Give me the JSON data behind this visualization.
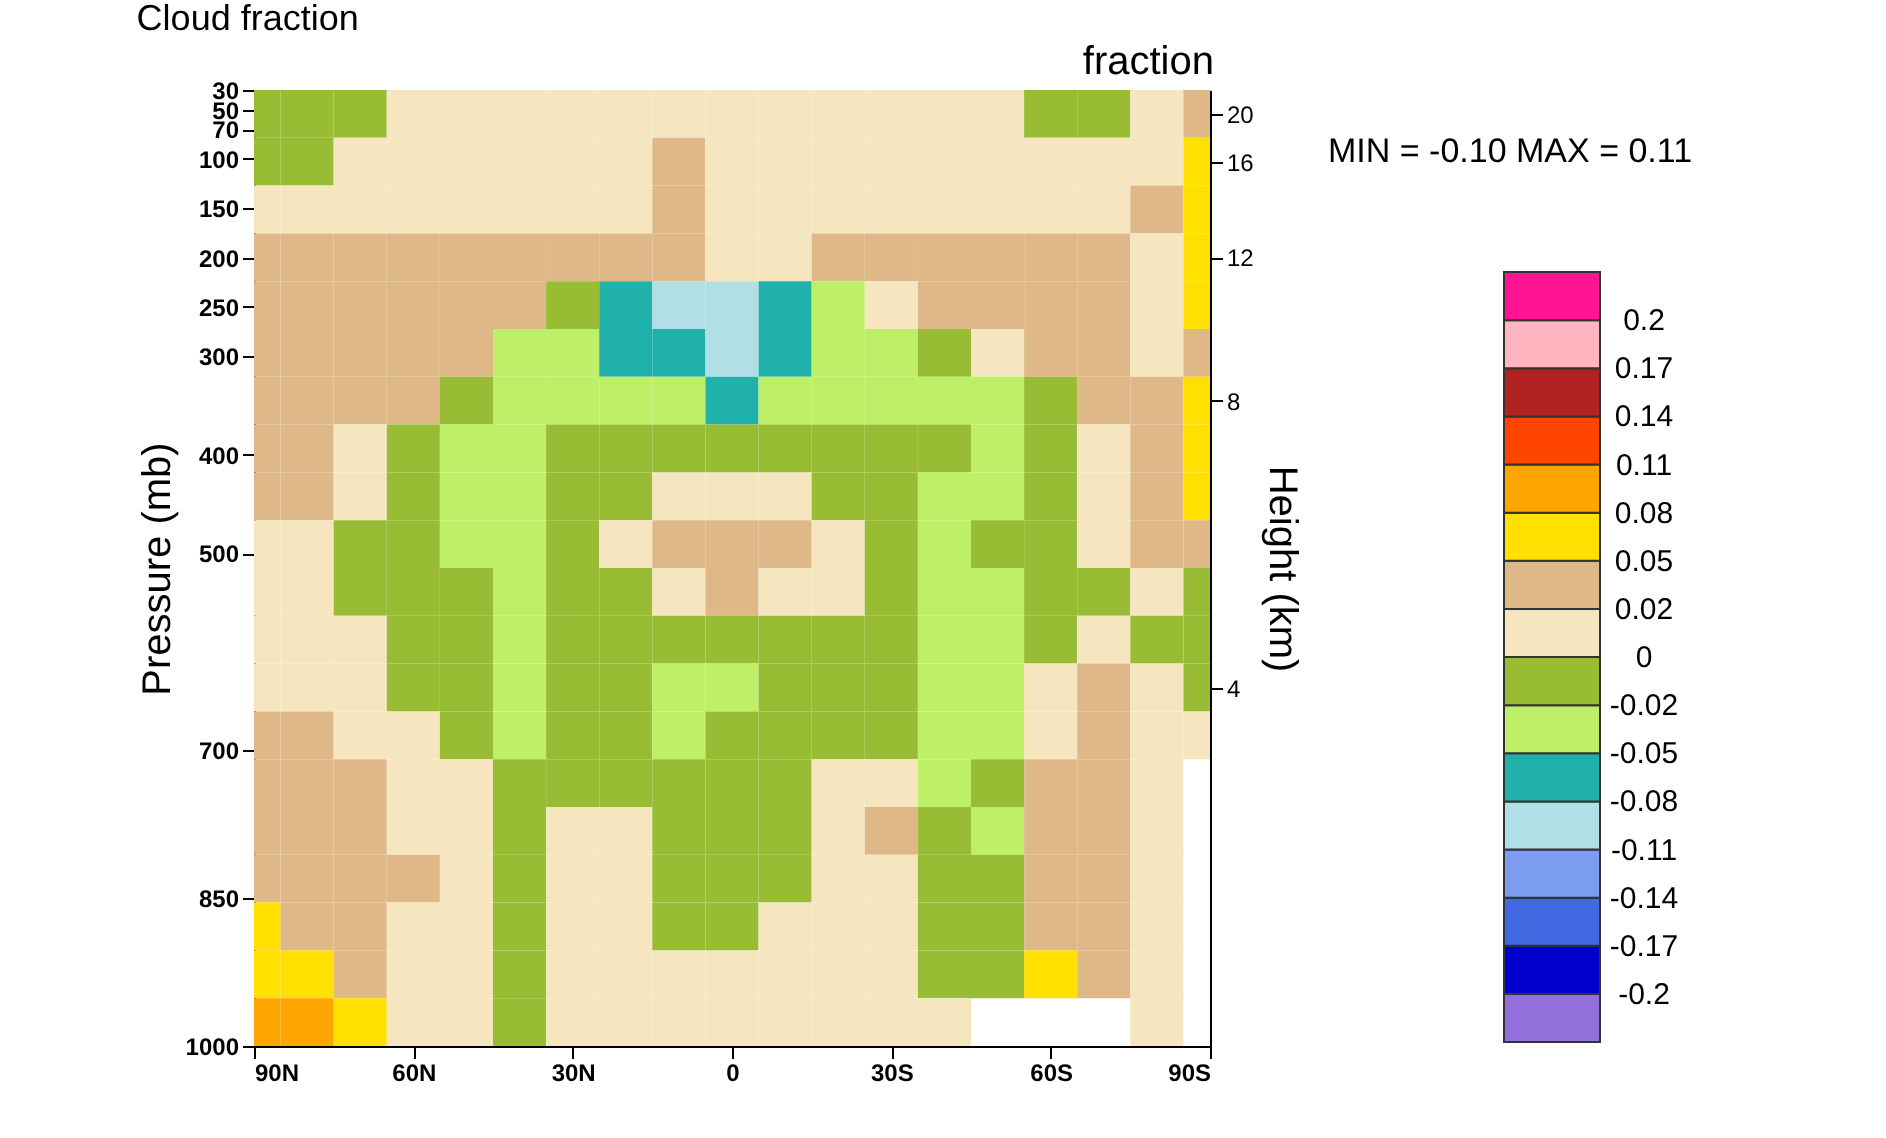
{
  "chart_data": {
    "type": "heatmap",
    "title": "Cloud fraction",
    "annotations": [
      "fraction",
      "MIN =  -0.10  MAX =   0.11"
    ],
    "ylabel": "Pressure (mb)",
    "y2label": "Height (km)",
    "x": [
      90,
      80,
      70,
      60,
      50,
      40,
      30,
      20,
      10,
      0,
      -10,
      -20,
      -30,
      -40,
      -50,
      -60,
      -70,
      -80,
      -90
    ],
    "xlim": [
      90,
      -90
    ],
    "xticks": [
      {
        "value": 90,
        "label": "90N"
      },
      {
        "value": 60,
        "label": "60N"
      },
      {
        "value": 30,
        "label": "30N"
      },
      0,
      {
        "value": -30,
        "label": "30S"
      },
      {
        "value": -60,
        "label": "60S"
      },
      {
        "value": -90,
        "label": "90S"
      }
    ],
    "y": [
      54.25,
      102.75,
      151.25,
      199.75,
      248.25,
      296.75,
      345.25,
      393.75,
      442.25,
      490.75,
      539.25,
      587.75,
      636.25,
      684.75,
      733.25,
      781.75,
      830.25,
      878.75,
      927.25,
      975.75
    ],
    "ylim": [
      1000,
      30
    ],
    "yticks": [
      30,
      50,
      70,
      100,
      150,
      200,
      250,
      300,
      400,
      500,
      700,
      850,
      1000
    ],
    "y2_categories": [
      "20",
      "16",
      null,
      "12",
      null,
      null,
      "8",
      null,
      null,
      null,
      null,
      null,
      "4",
      null,
      null,
      null,
      null,
      null,
      null,
      null
    ],
    "cells": [
      [
        -0.01,
        -0.01,
        -0.01,
        0.01,
        0.01,
        0.01,
        0.01,
        0.01,
        0.01,
        0.01,
        0.01,
        0.01,
        0.01,
        0.01,
        0.01,
        -0.01,
        -0.01,
        0.01,
        0.035
      ],
      [
        -0.01,
        -0.01,
        0.01,
        0.01,
        0.01,
        0.01,
        0.01,
        0.01,
        0.035,
        0.01,
        0.01,
        0.01,
        0.01,
        0.01,
        0.01,
        0.01,
        0.01,
        0.01,
        0.065
      ],
      [
        0.01,
        0.01,
        0.01,
        0.01,
        0.01,
        0.01,
        0.01,
        0.01,
        0.035,
        0.01,
        0.01,
        0.01,
        0.01,
        0.01,
        0.01,
        0.01,
        0.01,
        0.035,
        0.065
      ],
      [
        0.035,
        0.035,
        0.035,
        0.035,
        0.035,
        0.035,
        0.035,
        0.035,
        0.035,
        0.01,
        0.01,
        0.035,
        0.035,
        0.035,
        0.035,
        0.035,
        0.035,
        0.01,
        0.065
      ],
      [
        0.035,
        0.035,
        0.035,
        0.035,
        0.035,
        0.035,
        -0.01,
        -0.065,
        -0.095,
        -0.095,
        -0.065,
        -0.035,
        0.01,
        0.035,
        0.035,
        0.035,
        0.035,
        0.01,
        0.065
      ],
      [
        0.035,
        0.035,
        0.035,
        0.035,
        0.035,
        -0.035,
        -0.035,
        -0.065,
        -0.065,
        -0.095,
        -0.065,
        -0.035,
        -0.035,
        -0.01,
        0.01,
        0.035,
        0.035,
        0.01,
        0.035
      ],
      [
        0.035,
        0.035,
        0.035,
        0.035,
        -0.01,
        -0.035,
        -0.035,
        -0.035,
        -0.035,
        -0.065,
        -0.035,
        -0.035,
        -0.035,
        -0.035,
        -0.035,
        -0.01,
        0.035,
        0.035,
        0.065
      ],
      [
        0.035,
        0.035,
        0.01,
        -0.01,
        -0.035,
        -0.035,
        -0.01,
        -0.01,
        -0.01,
        -0.01,
        -0.01,
        -0.01,
        -0.01,
        -0.01,
        -0.035,
        -0.01,
        0.01,
        0.035,
        0.065
      ],
      [
        0.035,
        0.035,
        0.01,
        -0.01,
        -0.035,
        -0.035,
        -0.01,
        -0.01,
        0.01,
        0.01,
        0.01,
        -0.01,
        -0.01,
        -0.035,
        -0.035,
        -0.01,
        0.01,
        0.035,
        0.065
      ],
      [
        0.01,
        0.01,
        -0.01,
        -0.01,
        -0.035,
        -0.035,
        -0.01,
        0.01,
        0.035,
        0.035,
        0.035,
        0.01,
        -0.01,
        -0.035,
        -0.01,
        -0.01,
        0.01,
        0.035,
        0.035
      ],
      [
        0.01,
        0.01,
        -0.01,
        -0.01,
        -0.01,
        -0.035,
        -0.01,
        -0.01,
        0.01,
        0.035,
        0.01,
        0.01,
        -0.01,
        -0.035,
        -0.035,
        -0.01,
        -0.01,
        0.01,
        -0.01
      ],
      [
        0.01,
        0.01,
        0.01,
        -0.01,
        -0.01,
        -0.035,
        -0.01,
        -0.01,
        -0.01,
        -0.01,
        -0.01,
        -0.01,
        -0.01,
        -0.035,
        -0.035,
        -0.01,
        0.01,
        -0.01,
        -0.01
      ],
      [
        0.01,
        0.01,
        0.01,
        -0.01,
        -0.01,
        -0.035,
        -0.01,
        -0.01,
        -0.035,
        -0.035,
        -0.01,
        -0.01,
        -0.01,
        -0.035,
        -0.035,
        0.01,
        0.035,
        0.01,
        -0.01
      ],
      [
        0.035,
        0.035,
        0.01,
        0.01,
        -0.01,
        -0.035,
        -0.01,
        -0.01,
        -0.035,
        -0.01,
        -0.01,
        -0.01,
        -0.01,
        -0.035,
        -0.035,
        0.01,
        0.035,
        0.01,
        0.01
      ],
      [
        0.035,
        0.035,
        0.035,
        0.01,
        0.01,
        -0.01,
        -0.01,
        -0.01,
        -0.01,
        -0.01,
        -0.01,
        0.01,
        0.01,
        -0.035,
        -0.01,
        0.035,
        0.035,
        0.01,
        null
      ],
      [
        0.035,
        0.035,
        0.035,
        0.01,
        0.01,
        -0.01,
        0.01,
        0.01,
        -0.01,
        -0.01,
        -0.01,
        0.01,
        0.035,
        -0.01,
        -0.035,
        0.035,
        0.035,
        0.01,
        null
      ],
      [
        0.035,
        0.035,
        0.035,
        0.035,
        0.01,
        -0.01,
        0.01,
        0.01,
        -0.01,
        -0.01,
        -0.01,
        0.01,
        0.01,
        -0.01,
        -0.01,
        0.035,
        0.035,
        0.01,
        null
      ],
      [
        0.065,
        0.035,
        0.035,
        0.01,
        0.01,
        -0.01,
        0.01,
        0.01,
        -0.01,
        -0.01,
        0.01,
        0.01,
        0.01,
        -0.01,
        -0.01,
        0.035,
        0.035,
        0.01,
        null
      ],
      [
        0.065,
        0.065,
        0.035,
        0.01,
        0.01,
        -0.01,
        0.01,
        0.01,
        0.01,
        0.01,
        0.01,
        0.01,
        0.01,
        -0.01,
        -0.01,
        0.065,
        0.035,
        0.01,
        null
      ],
      [
        0.095,
        0.095,
        0.065,
        0.01,
        0.01,
        -0.01,
        0.01,
        0.01,
        0.01,
        0.01,
        0.01,
        0.01,
        0.01,
        0.01,
        null,
        null,
        null,
        0.01,
        null
      ]
    ],
    "clim": [
      -0.23,
      0.23
    ],
    "cticks": [
      -0.2,
      -0.17,
      -0.14,
      -0.11,
      -0.08,
      -0.05,
      -0.02,
      0,
      0.02,
      0.05,
      0.08,
      0.11,
      0.14,
      0.17,
      0.2
    ],
    "colors": [
      "#9370db",
      "#0000cd",
      "#4169e1",
      "#7b9cef",
      "#b0e0e6",
      "#20b2aa",
      "#bdf066",
      "#98bd34",
      "#f5e6c0",
      "#deb887",
      "#ffe000",
      "#ffa500",
      "#ff4500",
      "#b22222",
      "#ffb6c1",
      "#ff1493"
    ]
  }
}
